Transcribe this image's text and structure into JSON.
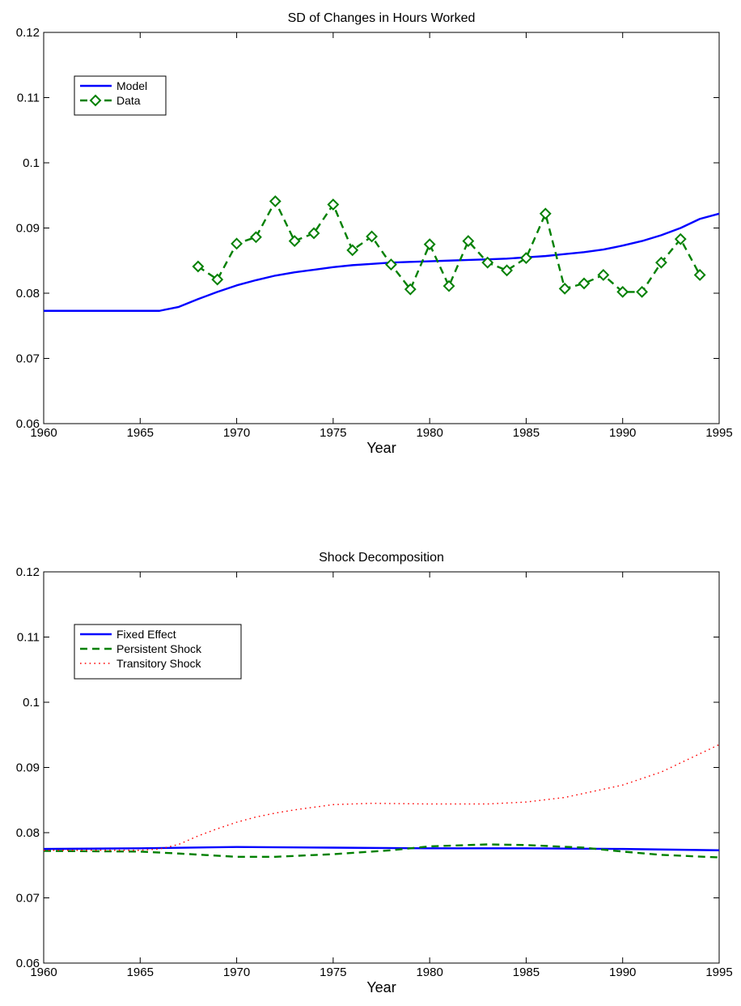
{
  "chart_data": [
    {
      "type": "line",
      "title": "SD of Changes in Hours Worked",
      "xlabel": "Year",
      "ylabel": "",
      "xlim": [
        1960,
        1995
      ],
      "ylim": [
        0.06,
        0.12
      ],
      "xticks": [
        1960,
        1965,
        1970,
        1975,
        1980,
        1985,
        1990,
        1995
      ],
      "yticks": [
        0.06,
        0.07,
        0.08,
        0.09,
        0.1,
        0.11,
        0.12
      ],
      "ytick_labels": [
        "0.06",
        "0.07",
        "0.08",
        "0.09",
        "0.1",
        "0.11",
        "0.12"
      ],
      "grid": false,
      "legend_position": "top-left",
      "series": [
        {
          "name": "Model",
          "style": "solid",
          "color": "#0000ff",
          "marker": "none",
          "x": [
            1960,
            1961,
            1962,
            1963,
            1964,
            1965,
            1966,
            1967,
            1968,
            1969,
            1970,
            1971,
            1972,
            1973,
            1974,
            1975,
            1976,
            1977,
            1978,
            1979,
            1980,
            1981,
            1982,
            1983,
            1984,
            1985,
            1986,
            1987,
            1988,
            1989,
            1990,
            1991,
            1992,
            1993,
            1994,
            1995
          ],
          "y": [
            0.0773,
            0.0773,
            0.0773,
            0.0773,
            0.0773,
            0.0773,
            0.0773,
            0.0779,
            0.0791,
            0.0802,
            0.0812,
            0.082,
            0.0827,
            0.0832,
            0.0836,
            0.084,
            0.0843,
            0.0845,
            0.0847,
            0.0848,
            0.0849,
            0.085,
            0.0851,
            0.0852,
            0.0853,
            0.0855,
            0.0857,
            0.086,
            0.0863,
            0.0867,
            0.0873,
            0.088,
            0.0889,
            0.09,
            0.0914,
            0.0922
          ]
        },
        {
          "name": "Data",
          "style": "dashed",
          "color": "#008000",
          "marker": "diamond",
          "x": [
            1968,
            1969,
            1970,
            1971,
            1972,
            1973,
            1974,
            1975,
            1976,
            1977,
            1978,
            1979,
            1980,
            1981,
            1982,
            1983,
            1984,
            1985,
            1986,
            1987,
            1988,
            1989,
            1990,
            1991,
            1992,
            1993,
            1994
          ],
          "y": [
            0.0841,
            0.0821,
            0.0876,
            0.0886,
            0.0941,
            0.088,
            0.0892,
            0.0936,
            0.0866,
            0.0887,
            0.0844,
            0.0806,
            0.0875,
            0.0811,
            0.088,
            0.0847,
            0.0835,
            0.0854,
            0.0922,
            0.0807,
            0.0815,
            0.0828,
            0.0802,
            0.0802,
            0.0847,
            0.0883,
            0.0828
          ]
        }
      ]
    },
    {
      "type": "line",
      "title": "Shock Decomposition",
      "xlabel": "Year",
      "ylabel": "",
      "xlim": [
        1960,
        1995
      ],
      "ylim": [
        0.06,
        0.12
      ],
      "xticks": [
        1960,
        1965,
        1970,
        1975,
        1980,
        1985,
        1990,
        1995
      ],
      "yticks": [
        0.06,
        0.07,
        0.08,
        0.09,
        0.1,
        0.11,
        0.12
      ],
      "ytick_labels": [
        "0.06",
        "0.07",
        "0.08",
        "0.09",
        "0.1",
        "0.11",
        "0.12"
      ],
      "grid": false,
      "legend_position": "top-left",
      "series": [
        {
          "name": "Fixed Effect",
          "style": "solid",
          "color": "#0000ff",
          "marker": "none",
          "x": [
            1960,
            1965,
            1970,
            1975,
            1980,
            1985,
            1990,
            1995
          ],
          "y": [
            0.0775,
            0.0776,
            0.0778,
            0.0777,
            0.0776,
            0.0776,
            0.0775,
            0.0773
          ]
        },
        {
          "name": "Persistent Shock",
          "style": "dashed",
          "color": "#008000",
          "marker": "none",
          "x": [
            1960,
            1965,
            1967,
            1970,
            1972,
            1975,
            1978,
            1980,
            1983,
            1985,
            1988,
            1990,
            1992,
            1995
          ],
          "y": [
            0.0772,
            0.0771,
            0.0768,
            0.0763,
            0.0763,
            0.0767,
            0.0773,
            0.0779,
            0.0782,
            0.0781,
            0.0777,
            0.0771,
            0.0766,
            0.0762
          ]
        },
        {
          "name": "Transitory Shock",
          "style": "dotted",
          "color": "#ff0000",
          "marker": "none",
          "x": [
            1960,
            1965,
            1966,
            1967,
            1968,
            1969,
            1970,
            1971,
            1972,
            1973,
            1974,
            1975,
            1977,
            1980,
            1983,
            1985,
            1987,
            1990,
            1992,
            1995
          ],
          "y": [
            0.0773,
            0.0773,
            0.0775,
            0.0782,
            0.0795,
            0.0806,
            0.0816,
            0.0824,
            0.083,
            0.0835,
            0.0839,
            0.0843,
            0.0845,
            0.0844,
            0.0844,
            0.0847,
            0.0854,
            0.0873,
            0.0893,
            0.0935
          ]
        }
      ]
    }
  ]
}
